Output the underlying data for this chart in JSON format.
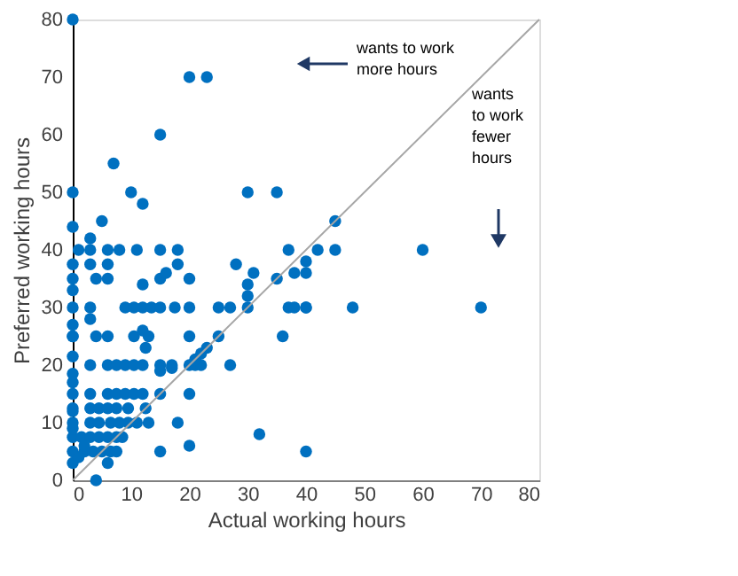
{
  "chart_data": {
    "type": "scatter",
    "xlabel": "Actual working hours",
    "ylabel": "Preferred working hours",
    "xlim": [
      0,
      80
    ],
    "ylim": [
      0,
      80
    ],
    "xticks": [
      0,
      10,
      20,
      30,
      40,
      50,
      60,
      70,
      80
    ],
    "yticks": [
      0,
      10,
      20,
      30,
      40,
      50,
      60,
      70,
      80
    ],
    "grid": false,
    "legend": false,
    "marker": "circle",
    "annotations": [
      "wants to work\nmore hours",
      "wants\nto work\nfewer\nhours"
    ],
    "series": [
      {
        "color": "#0070c0",
        "x": [
          0,
          20,
          23,
          15,
          7,
          0,
          10,
          12,
          30,
          35,
          0,
          5,
          3,
          1,
          3,
          6,
          8,
          11,
          15,
          18,
          37,
          45,
          40,
          42,
          45,
          60,
          40,
          40,
          37,
          40,
          48,
          70,
          36,
          40,
          0,
          3,
          6,
          18,
          28,
          31,
          0,
          4,
          6,
          12,
          15,
          16,
          20,
          30,
          35,
          38,
          0,
          30,
          0,
          3,
          9,
          10.5,
          12,
          13.5,
          15,
          17.5,
          20,
          25,
          27,
          30,
          38,
          3,
          0,
          10.5,
          12,
          13,
          20,
          25,
          0,
          4,
          6,
          12.5,
          0,
          3,
          6,
          7.5,
          9,
          10.5,
          12,
          15,
          17,
          20,
          21,
          22,
          27,
          21,
          22,
          23,
          0,
          15,
          17,
          0,
          0,
          3,
          6,
          7.5,
          9,
          10.5,
          12,
          15,
          20,
          0,
          3,
          4.5,
          6,
          7.5,
          9.5,
          12.5,
          0,
          3,
          4.5,
          6.5,
          8,
          9.5,
          11,
          13,
          18,
          32,
          0,
          1.5,
          3,
          4.5,
          6,
          7.5,
          8.5,
          20,
          15,
          0,
          2,
          3.5,
          5,
          6.5,
          7.5,
          0,
          6,
          4,
          0,
          0,
          0,
          1,
          2
        ],
        "values": [
          80,
          70,
          70,
          60,
          55,
          50,
          50,
          48,
          50,
          50,
          44,
          45,
          42,
          40,
          40,
          40,
          40,
          40,
          40,
          40,
          40,
          45,
          38,
          40,
          40,
          40,
          36,
          30,
          30,
          30,
          30,
          30,
          25,
          5,
          37.5,
          37.5,
          37.5,
          37.5,
          37.5,
          36,
          35,
          35,
          35,
          34,
          35,
          36,
          35,
          34,
          35,
          36,
          33,
          32,
          30,
          30,
          30,
          30,
          30,
          30,
          30,
          30,
          30,
          30,
          30,
          30,
          30,
          28,
          25,
          25,
          26,
          25,
          25,
          25,
          25,
          25,
          25,
          23,
          21.5,
          20,
          20,
          20,
          20,
          20,
          20,
          20,
          20,
          20,
          20,
          20,
          20,
          21,
          22,
          23,
          18.5,
          19,
          19.5,
          17,
          15,
          15,
          15,
          15,
          15,
          15,
          15,
          15,
          15,
          12.5,
          12.5,
          12.5,
          12.5,
          12.5,
          12.5,
          12.5,
          10,
          10,
          10,
          10,
          10,
          10,
          10,
          10,
          10,
          8,
          7.5,
          7.5,
          7.5,
          7.5,
          7.5,
          7.5,
          7.5,
          6,
          5,
          5,
          5,
          5,
          5,
          5,
          5,
          3,
          3,
          0,
          9,
          12,
          27,
          4,
          6
        ]
      },
      {
        "type": "line",
        "color": "#a6a6a6",
        "marker": "none",
        "line_style": "solid",
        "x": [
          0,
          80
        ],
        "values": [
          0,
          80
        ]
      }
    ]
  }
}
